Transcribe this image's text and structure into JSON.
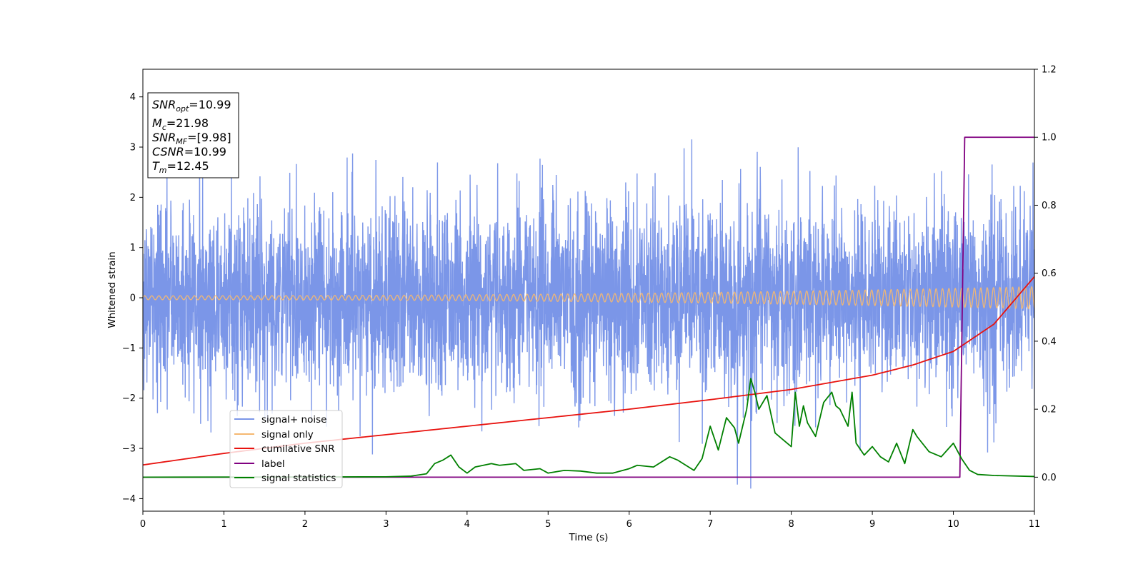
{
  "chart_data": {
    "type": "line",
    "xlabel": "Time (s)",
    "ylabel": "Whitened strain",
    "xlim": [
      0,
      11
    ],
    "ylim": [
      -4.25,
      4.55
    ],
    "y2lim": [
      -0.1,
      1.2
    ],
    "x_ticks": [
      0,
      1,
      2,
      3,
      4,
      5,
      6,
      7,
      8,
      9,
      10,
      11
    ],
    "y_ticks": [
      -4,
      -3,
      -2,
      -1,
      0,
      1,
      2,
      3,
      4
    ],
    "y2_ticks": [
      "0.0",
      "0.2",
      "0.4",
      "0.6",
      "0.8",
      "1.0",
      "1.2"
    ],
    "grid": false,
    "legend_position": "lower-left",
    "annotations": [
      {
        "name": "SNR",
        "sub": "opt",
        "value": "=10.99"
      },
      {
        "name": "M",
        "sub": "c",
        "value": "=21.98"
      },
      {
        "name": "SNR",
        "sub": "MF",
        "value": "=[9.98]"
      },
      {
        "name": "CSNR",
        "sub": "",
        "value": "=10.99"
      },
      {
        "name": "T",
        "sub": "m",
        "value": "=12.45"
      }
    ],
    "series": [
      {
        "name": "signal+ noise",
        "axis": "left",
        "color": "#7b96e8",
        "note_kind": "noise",
        "amplitude_envelope": 2.3
      },
      {
        "name": "signal only",
        "axis": "left",
        "color": "#f5b870",
        "kind": "chirp",
        "amplitude_start": 0.04,
        "amplitude_end": 0.22,
        "period_start": 0.088,
        "period_end": 0.078
      },
      {
        "name": "cumilative SNR",
        "axis": "right",
        "color": "#e8130f",
        "x": [
          0,
          1,
          2,
          3,
          4,
          5,
          6,
          7,
          8,
          9,
          9.5,
          10,
          10.5,
          11
        ],
        "values": [
          0.036,
          0.07,
          0.1,
          0.125,
          0.15,
          0.175,
          0.2,
          0.228,
          0.258,
          0.3,
          0.33,
          0.37,
          0.45,
          0.59
        ]
      },
      {
        "name": "label",
        "axis": "right",
        "color": "#800080",
        "x": [
          0,
          10.08,
          10.14,
          11
        ],
        "values": [
          0,
          0,
          1,
          1
        ]
      },
      {
        "name": "signal statistics",
        "axis": "right",
        "color": "#008000",
        "x": [
          0,
          3.0,
          3.3,
          3.5,
          3.6,
          3.7,
          3.8,
          3.9,
          4.0,
          4.1,
          4.3,
          4.4,
          4.6,
          4.7,
          4.9,
          5.0,
          5.2,
          5.4,
          5.6,
          5.8,
          6.0,
          6.1,
          6.3,
          6.5,
          6.6,
          6.8,
          6.9,
          7.0,
          7.1,
          7.2,
          7.3,
          7.35,
          7.45,
          7.5,
          7.55,
          7.6,
          7.65,
          7.7,
          7.8,
          7.9,
          8.0,
          8.05,
          8.1,
          8.15,
          8.2,
          8.3,
          8.4,
          8.5,
          8.55,
          8.6,
          8.7,
          8.75,
          8.8,
          8.9,
          9.0,
          9.1,
          9.2,
          9.3,
          9.4,
          9.5,
          9.55,
          9.7,
          9.85,
          10.0,
          10.1,
          10.2,
          10.3,
          10.5,
          11
        ],
        "values": [
          0,
          0.001,
          0.003,
          0.01,
          0.04,
          0.05,
          0.065,
          0.03,
          0.012,
          0.03,
          0.04,
          0.035,
          0.04,
          0.02,
          0.025,
          0.012,
          0.02,
          0.018,
          0.012,
          0.012,
          0.025,
          0.035,
          0.03,
          0.06,
          0.05,
          0.02,
          0.055,
          0.15,
          0.08,
          0.175,
          0.145,
          0.1,
          0.2,
          0.29,
          0.25,
          0.2,
          0.22,
          0.24,
          0.13,
          0.11,
          0.09,
          0.25,
          0.15,
          0.21,
          0.16,
          0.12,
          0.22,
          0.25,
          0.21,
          0.2,
          0.15,
          0.25,
          0.1,
          0.065,
          0.09,
          0.06,
          0.045,
          0.1,
          0.04,
          0.14,
          0.12,
          0.075,
          0.06,
          0.1,
          0.055,
          0.02,
          0.008,
          0.005,
          0.002
        ]
      }
    ]
  }
}
